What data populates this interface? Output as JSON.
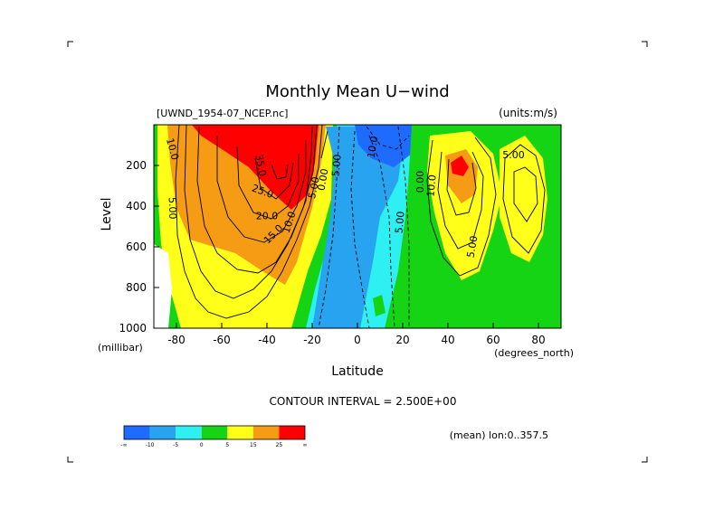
{
  "chart_data": {
    "type": "contour",
    "title": "Monthly Mean U−wind",
    "dataset_label": "[UWND_1954-07_NCEP.nc]",
    "units_label": "(units:m/s)",
    "xlabel": "Latitude",
    "ylabel": "Level",
    "x_unit_label": "(degrees_north)",
    "y_unit_label": "(millibar)",
    "xlim": [
      -90,
      90
    ],
    "ylim": [
      1000,
      0
    ],
    "x_ticks": [
      -80,
      -60,
      -40,
      -20,
      0,
      20,
      40,
      60,
      80
    ],
    "y_ticks": [
      200,
      400,
      600,
      800,
      1000
    ],
    "contour_interval_text": "CONTOUR INTERVAL = 2.500E+00",
    "footer_note": "(mean) lon:0..357.5",
    "colorbar": {
      "labels": [
        "-∞",
        "-10",
        "-5",
        "0",
        "5",
        "15",
        "25",
        "∞"
      ],
      "colors": [
        "#1e6cff",
        "#27a3ef",
        "#2ef0f2",
        "#14d414",
        "#ffff1a",
        "#f59b14",
        "#ff0000"
      ]
    },
    "contour_labels": [
      {
        "text": "10.0",
        "lat": -82,
        "level": 120,
        "rot": 75
      },
      {
        "text": "5.00",
        "lat": -82,
        "level": 410,
        "rot": 88
      },
      {
        "text": "35.0",
        "lat": -43,
        "level": 200,
        "rot": 80
      },
      {
        "text": "25.0",
        "lat": -42,
        "level": 330,
        "rot": 20
      },
      {
        "text": "20.0",
        "lat": -40,
        "level": 450,
        "rot": 0
      },
      {
        "text": "15.0",
        "lat": -37,
        "level": 540,
        "rot": -45
      },
      {
        "text": "10.0",
        "lat": -30,
        "level": 480,
        "rot": -72
      },
      {
        "text": "5.00",
        "lat": -19,
        "level": 310,
        "rot": -78
      },
      {
        "text": "0.00",
        "lat": -15,
        "level": 270,
        "rot": -80
      },
      {
        "text": "5.00",
        "lat": -9,
        "level": 200,
        "rot": -85
      },
      {
        "text": "10.0",
        "lat": 7,
        "level": 110,
        "rot": -80
      },
      {
        "text": "5.00",
        "lat": 19,
        "level": 480,
        "rot": -85
      },
      {
        "text": "10.0",
        "lat": 33,
        "level": 300,
        "rot": -85
      },
      {
        "text": "0.00",
        "lat": 28,
        "level": 280,
        "rot": -90
      },
      {
        "text": "5.00",
        "lat": 51,
        "level": 600,
        "rot": -80
      },
      {
        "text": "5.00",
        "lat": 69,
        "level": 150,
        "rot": 0
      }
    ]
  }
}
